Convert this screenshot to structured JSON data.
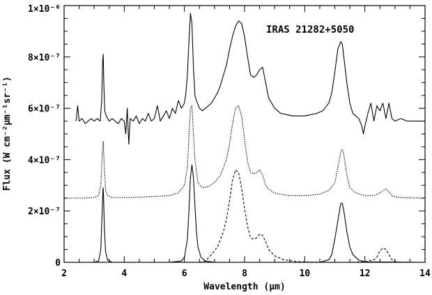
{
  "chart_data": {
    "type": "line",
    "annotation": "IRAS 21282+5050",
    "xlabel": "Wavelength (μm)",
    "ylabel": "Flux (W cm⁻²μm⁻¹sr⁻¹)",
    "xlim": [
      2,
      14
    ],
    "ylim": [
      0,
      1e-06
    ],
    "x_ticks": [
      2,
      4,
      6,
      8,
      10,
      12,
      14
    ],
    "x_tick_labels": [
      "2",
      "4",
      "6",
      "8",
      "10",
      "12",
      "14"
    ],
    "y_ticks": [
      0,
      2e-07,
      4e-07,
      6e-07,
      8e-07,
      1e-06
    ],
    "y_tick_labels": [
      "0",
      "2×10⁻⁷",
      "4×10⁻⁷",
      "6×10⁻⁷",
      "8×10⁻⁷",
      "1×10⁻⁶"
    ],
    "grid": false,
    "series": [
      {
        "style": "solid",
        "kind": "observed",
        "x": [
          2.4,
          2.45,
          2.5,
          2.6,
          2.7,
          2.8,
          2.9,
          3.0,
          3.1,
          3.2,
          3.25,
          3.28,
          3.3,
          3.32,
          3.35,
          3.4,
          3.5,
          3.6,
          3.7,
          3.8,
          3.9,
          4.0,
          4.05,
          4.1,
          4.15,
          4.2,
          4.3,
          4.4,
          4.5,
          4.6,
          4.7,
          4.8,
          4.9,
          5.0,
          5.1,
          5.2,
          5.3,
          5.4,
          5.5,
          5.6,
          5.7,
          5.8,
          5.9,
          6.0,
          6.05,
          6.1,
          6.15,
          6.2,
          6.25,
          6.3,
          6.35,
          6.4,
          6.5,
          6.6,
          6.7,
          6.8,
          6.9,
          7.0,
          7.1,
          7.2,
          7.3,
          7.4,
          7.5,
          7.6,
          7.7,
          7.8,
          7.9,
          8.0,
          8.1,
          8.2,
          8.3,
          8.4,
          8.5,
          8.6,
          8.7,
          8.8,
          9.0,
          9.2,
          9.4,
          9.6,
          9.8,
          10.0,
          10.2,
          10.4,
          10.6,
          10.8,
          10.9,
          11.0,
          11.1,
          11.2,
          11.25,
          11.3,
          11.4,
          11.5,
          11.6,
          11.7,
          11.8,
          11.9,
          11.95,
          12.0,
          12.1,
          12.2,
          12.3,
          12.4,
          12.5,
          12.6,
          12.7,
          12.8,
          12.9,
          13.0,
          13.2,
          13.4,
          13.6,
          13.8,
          14.0
        ],
        "y": [
          5.5e-07,
          6.1e-07,
          5.5e-07,
          5.6e-07,
          5.4e-07,
          5.5e-07,
          5.6e-07,
          5.5e-07,
          5.6e-07,
          5.5e-07,
          6.3e-07,
          7.8e-07,
          8.1e-07,
          7e-07,
          5.9e-07,
          5.7e-07,
          5.5e-07,
          5.6e-07,
          5.5e-07,
          5.4e-07,
          5.6e-07,
          5.5e-07,
          5e-07,
          6e-07,
          4.6e-07,
          5.6e-07,
          5.5e-07,
          5.7e-07,
          5.4e-07,
          5.6e-07,
          5.5e-07,
          5.8e-07,
          5.5e-07,
          5.6e-07,
          6.1e-07,
          5.5e-07,
          5.7e-07,
          5.9e-07,
          5.6e-07,
          6e-07,
          5.8e-07,
          6.3e-07,
          6e-07,
          6.2e-07,
          6.6e-07,
          7.3e-07,
          8.6e-07,
          9.7e-07,
          9.3e-07,
          7.6e-07,
          6.5e-07,
          6.3e-07,
          6e-07,
          5.9e-07,
          6e-07,
          6.1e-07,
          6.2e-07,
          6.4e-07,
          6.6e-07,
          6.9e-07,
          7.3e-07,
          7.7e-07,
          8.3e-07,
          8.8e-07,
          9.2e-07,
          9.4e-07,
          9.3e-07,
          8.8e-07,
          8e-07,
          7.3e-07,
          7.2e-07,
          7.3e-07,
          7.5e-07,
          7.6e-07,
          7e-07,
          6.4e-07,
          6e-07,
          5.8e-07,
          5.75e-07,
          5.7e-07,
          5.7e-07,
          5.7e-07,
          5.75e-07,
          5.8e-07,
          5.9e-07,
          6.2e-07,
          6.6e-07,
          7.4e-07,
          8.3e-07,
          8.6e-07,
          8.5e-07,
          8e-07,
          7e-07,
          6.2e-07,
          5.8e-07,
          5.7e-07,
          5.6e-07,
          5.3e-07,
          5e-07,
          5.3e-07,
          5.8e-07,
          6.2e-07,
          5.5e-07,
          6.1e-07,
          5.9e-07,
          6.2e-07,
          5.6e-07,
          6.2e-07,
          5.6e-07,
          5.5e-07,
          5.6e-07,
          5.5e-07,
          5.5e-07,
          5.5e-07,
          5.5e-07
        ]
      },
      {
        "style": "dotted",
        "kind": "model-offset",
        "x": [
          2.0,
          2.5,
          3.0,
          3.15,
          3.22,
          3.27,
          3.3,
          3.33,
          3.38,
          3.45,
          3.6,
          4.0,
          4.5,
          5.0,
          5.5,
          5.8,
          6.0,
          6.1,
          6.15,
          6.2,
          6.25,
          6.3,
          6.35,
          6.45,
          6.6,
          6.8,
          7.0,
          7.2,
          7.4,
          7.5,
          7.6,
          7.7,
          7.8,
          7.9,
          8.0,
          8.1,
          8.2,
          8.3,
          8.4,
          8.5,
          8.6,
          8.7,
          8.8,
          9.0,
          9.2,
          9.5,
          10.0,
          10.5,
          10.8,
          11.0,
          11.1,
          11.2,
          11.25,
          11.3,
          11.4,
          11.5,
          11.7,
          12.0,
          12.3,
          12.5,
          12.6,
          12.7,
          12.8,
          12.9,
          13.0,
          13.3,
          13.6,
          14.0
        ],
        "y": [
          2.5e-07,
          2.5e-07,
          2.52e-07,
          2.6e-07,
          3e-07,
          4.2e-07,
          4.7e-07,
          3.9e-07,
          2.8e-07,
          2.6e-07,
          2.52e-07,
          2.52e-07,
          2.54e-07,
          2.56e-07,
          2.6e-07,
          2.7e-07,
          3e-07,
          3.7e-07,
          4.9e-07,
          6e-07,
          6.1e-07,
          5e-07,
          4e-07,
          3.1e-07,
          2.9e-07,
          2.95e-07,
          3.1e-07,
          3.4e-07,
          4e-07,
          4.6e-07,
          5.4e-07,
          6e-07,
          6.1e-07,
          5.7e-07,
          4.8e-07,
          3.9e-07,
          3.5e-07,
          3.45e-07,
          3.5e-07,
          3.6e-07,
          3.4e-07,
          3e-07,
          2.85e-07,
          2.7e-07,
          2.65e-07,
          2.6e-07,
          2.6e-07,
          2.65e-07,
          2.8e-07,
          3.1e-07,
          3.7e-07,
          4.3e-07,
          4.4e-07,
          4.2e-07,
          3.4e-07,
          2.9e-07,
          2.7e-07,
          2.6e-07,
          2.6e-07,
          2.7e-07,
          2.8e-07,
          2.85e-07,
          2.75e-07,
          2.6e-07,
          2.55e-07,
          2.52e-07,
          2.51e-07,
          2.5e-07
        ]
      },
      {
        "style": "solid",
        "kind": "component-narrow",
        "x": [
          2.0,
          3.0,
          3.15,
          3.22,
          3.26,
          3.29,
          3.3,
          3.31,
          3.34,
          3.38,
          3.45,
          3.6,
          5.5,
          5.9,
          6.0,
          6.1,
          6.15,
          6.2,
          6.25,
          6.3,
          6.35,
          6.4,
          6.45,
          6.55,
          6.7,
          7.0,
          10.5,
          10.8,
          10.9,
          11.0,
          11.1,
          11.2,
          11.25,
          11.3,
          11.4,
          11.5,
          11.6,
          11.8,
          12.0,
          14.0
        ],
        "y": [
          0,
          0,
          5e-09,
          5e-08,
          1.8e-07,
          2.8e-07,
          2.9e-07,
          2.6e-07,
          1.3e-07,
          4e-08,
          8e-09,
          0,
          0,
          5e-09,
          2e-08,
          9e-08,
          2e-07,
          3.3e-07,
          3.8e-07,
          3.3e-07,
          2.2e-07,
          1.2e-07,
          6e-08,
          2e-08,
          5e-09,
          0,
          0,
          1e-08,
          3e-08,
          9e-08,
          1.6e-07,
          2.3e-07,
          2.3e-07,
          2e-07,
          1.2e-07,
          6e-08,
          3e-08,
          8e-09,
          2e-09,
          0
        ]
      },
      {
        "style": "dashed",
        "kind": "component-broad",
        "x": [
          6.5,
          6.7,
          6.9,
          7.1,
          7.3,
          7.4,
          7.5,
          7.6,
          7.7,
          7.8,
          7.9,
          8.0,
          8.1,
          8.2,
          8.3,
          8.4,
          8.5,
          8.6,
          8.7,
          8.8,
          9.0,
          9.3,
          9.7,
          10.2,
          10.8,
          11.5,
          12.0,
          12.3,
          12.4,
          12.5,
          12.6,
          12.7,
          12.8,
          12.9,
          13.0,
          13.2
        ],
        "y": [
          0,
          5e-09,
          3e-08,
          6e-08,
          1.2e-07,
          1.7e-07,
          2.4e-07,
          3.2e-07,
          3.6e-07,
          3.5e-07,
          2.9e-07,
          2.1e-07,
          1.4e-07,
          9.5e-08,
          9e-08,
          9.5e-08,
          1.1e-07,
          1.05e-07,
          8e-08,
          5e-08,
          2.5e-08,
          1e-08,
          3e-09,
          1e-09,
          0,
          0,
          2e-09,
          1e-08,
          2e-08,
          4.5e-08,
          5.5e-08,
          5e-08,
          3e-08,
          1e-08,
          3e-09,
          0
        ]
      }
    ]
  }
}
